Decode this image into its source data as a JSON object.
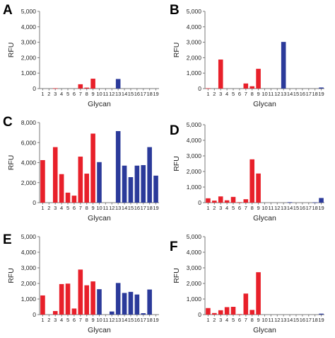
{
  "colors": {
    "red": "#e8202a",
    "blue": "#2b3a9a"
  },
  "chart_data": [
    {
      "panel": "A",
      "type": "bar",
      "xlabel": "Glycan",
      "ylabel": "RFU",
      "ylim": [
        0,
        5000
      ],
      "yticks": [
        "0",
        "1,000",
        "2,000",
        "3,000",
        "4,000",
        "5,000"
      ],
      "categories": [
        "1",
        "2",
        "3",
        "4",
        "5",
        "6",
        "7",
        "8",
        "9",
        "10",
        "11",
        "12",
        "13",
        "14",
        "15",
        "16",
        "17",
        "18",
        "19"
      ],
      "values": [
        0,
        0,
        20,
        0,
        0,
        0,
        280,
        60,
        640,
        0,
        0,
        0,
        620,
        0,
        0,
        0,
        0,
        0,
        0
      ],
      "bar_colors": [
        "red",
        "red",
        "red",
        "red",
        "red",
        "red",
        "red",
        "red",
        "red",
        "red",
        "blue",
        "blue",
        "blue",
        "blue",
        "blue",
        "blue",
        "blue",
        "blue",
        "blue"
      ]
    },
    {
      "panel": "B",
      "type": "bar",
      "xlabel": "Glycan",
      "ylabel": "RFU",
      "ylim": [
        0,
        5000
      ],
      "yticks": [
        "0",
        "1,000",
        "2,000",
        "3,000",
        "4,000",
        "5,000"
      ],
      "categories": [
        "1",
        "2",
        "3",
        "4",
        "5",
        "6",
        "7",
        "8",
        "9",
        "10",
        "11",
        "12",
        "13",
        "14",
        "15",
        "16",
        "17",
        "18",
        "19"
      ],
      "values": [
        20,
        0,
        1880,
        0,
        0,
        0,
        330,
        150,
        1280,
        0,
        0,
        0,
        3020,
        0,
        0,
        0,
        0,
        0,
        70
      ],
      "bar_colors": [
        "red",
        "red",
        "red",
        "red",
        "red",
        "red",
        "red",
        "red",
        "red",
        "red",
        "blue",
        "blue",
        "blue",
        "blue",
        "blue",
        "blue",
        "blue",
        "blue",
        "blue"
      ]
    },
    {
      "panel": "C",
      "type": "bar",
      "xlabel": "Glycan",
      "ylabel": "RFU",
      "ylim": [
        0,
        8000
      ],
      "yticks": [
        "0",
        "2,000",
        "4,000",
        "6,000",
        "8,000"
      ],
      "categories": [
        "1",
        "2",
        "3",
        "4",
        "5",
        "6",
        "7",
        "8",
        "9",
        "10",
        "11",
        "12",
        "13",
        "14",
        "15",
        "16",
        "17",
        "18",
        "19"
      ],
      "values": [
        4250,
        0,
        5550,
        2850,
        1000,
        700,
        4600,
        2900,
        6900,
        4050,
        0,
        0,
        7150,
        3700,
        2550,
        3700,
        3750,
        5550,
        2700
      ],
      "bar_colors": [
        "red",
        "red",
        "red",
        "red",
        "red",
        "red",
        "red",
        "red",
        "red",
        "blue",
        "blue",
        "blue",
        "blue",
        "blue",
        "blue",
        "blue",
        "blue",
        "blue",
        "blue"
      ]
    },
    {
      "panel": "D",
      "type": "bar",
      "xlabel": "Glycan",
      "ylabel": "RFU",
      "ylim": [
        0,
        5000
      ],
      "yticks": [
        "0",
        "1,000",
        "2,000",
        "3,000",
        "4,000",
        "5,000"
      ],
      "categories": [
        "1",
        "2",
        "3",
        "4",
        "5",
        "6",
        "7",
        "8",
        "9",
        "10",
        "11",
        "12",
        "13",
        "14",
        "15",
        "16",
        "17",
        "18",
        "19"
      ],
      "values": [
        280,
        130,
        400,
        150,
        370,
        30,
        220,
        2780,
        1870,
        0,
        0,
        0,
        0,
        30,
        0,
        0,
        0,
        20,
        300
      ],
      "bar_colors": [
        "red",
        "red",
        "red",
        "red",
        "red",
        "red",
        "red",
        "red",
        "red",
        "red",
        "blue",
        "blue",
        "blue",
        "blue",
        "blue",
        "blue",
        "blue",
        "blue",
        "blue"
      ]
    },
    {
      "panel": "E",
      "type": "bar",
      "xlabel": "Glycan",
      "ylabel": "RFU",
      "ylim": [
        0,
        5000
      ],
      "yticks": [
        "0",
        "1,000",
        "2,000",
        "3,000",
        "4,000",
        "5,000"
      ],
      "categories": [
        "1",
        "2",
        "3",
        "4",
        "5",
        "6",
        "7",
        "8",
        "9",
        "10",
        "11",
        "12",
        "13",
        "14",
        "15",
        "16",
        "17",
        "18",
        "19"
      ],
      "values": [
        1230,
        0,
        230,
        1960,
        1990,
        390,
        2890,
        1880,
        2130,
        1630,
        0,
        200,
        2030,
        1390,
        1460,
        1290,
        90,
        1610,
        0
      ],
      "bar_colors": [
        "red",
        "red",
        "red",
        "red",
        "red",
        "red",
        "red",
        "red",
        "red",
        "blue",
        "blue",
        "blue",
        "blue",
        "blue",
        "blue",
        "blue",
        "blue",
        "blue",
        "blue"
      ]
    },
    {
      "panel": "F",
      "type": "bar",
      "xlabel": "Glycan",
      "ylabel": "RFU",
      "ylim": [
        0,
        5000
      ],
      "yticks": [
        "0",
        "1,000",
        "2,000",
        "3,000",
        "4,000",
        "5,000"
      ],
      "categories": [
        "1",
        "2",
        "3",
        "4",
        "5",
        "6",
        "7",
        "8",
        "9",
        "10",
        "11",
        "12",
        "13",
        "14",
        "15",
        "16",
        "17",
        "18",
        "19"
      ],
      "values": [
        420,
        100,
        280,
        480,
        500,
        30,
        1350,
        300,
        2720,
        0,
        0,
        0,
        0,
        0,
        0,
        0,
        0,
        0,
        60
      ],
      "bar_colors": [
        "red",
        "red",
        "red",
        "red",
        "red",
        "red",
        "red",
        "red",
        "red",
        "red",
        "blue",
        "blue",
        "blue",
        "blue",
        "blue",
        "blue",
        "blue",
        "blue",
        "blue"
      ]
    }
  ]
}
